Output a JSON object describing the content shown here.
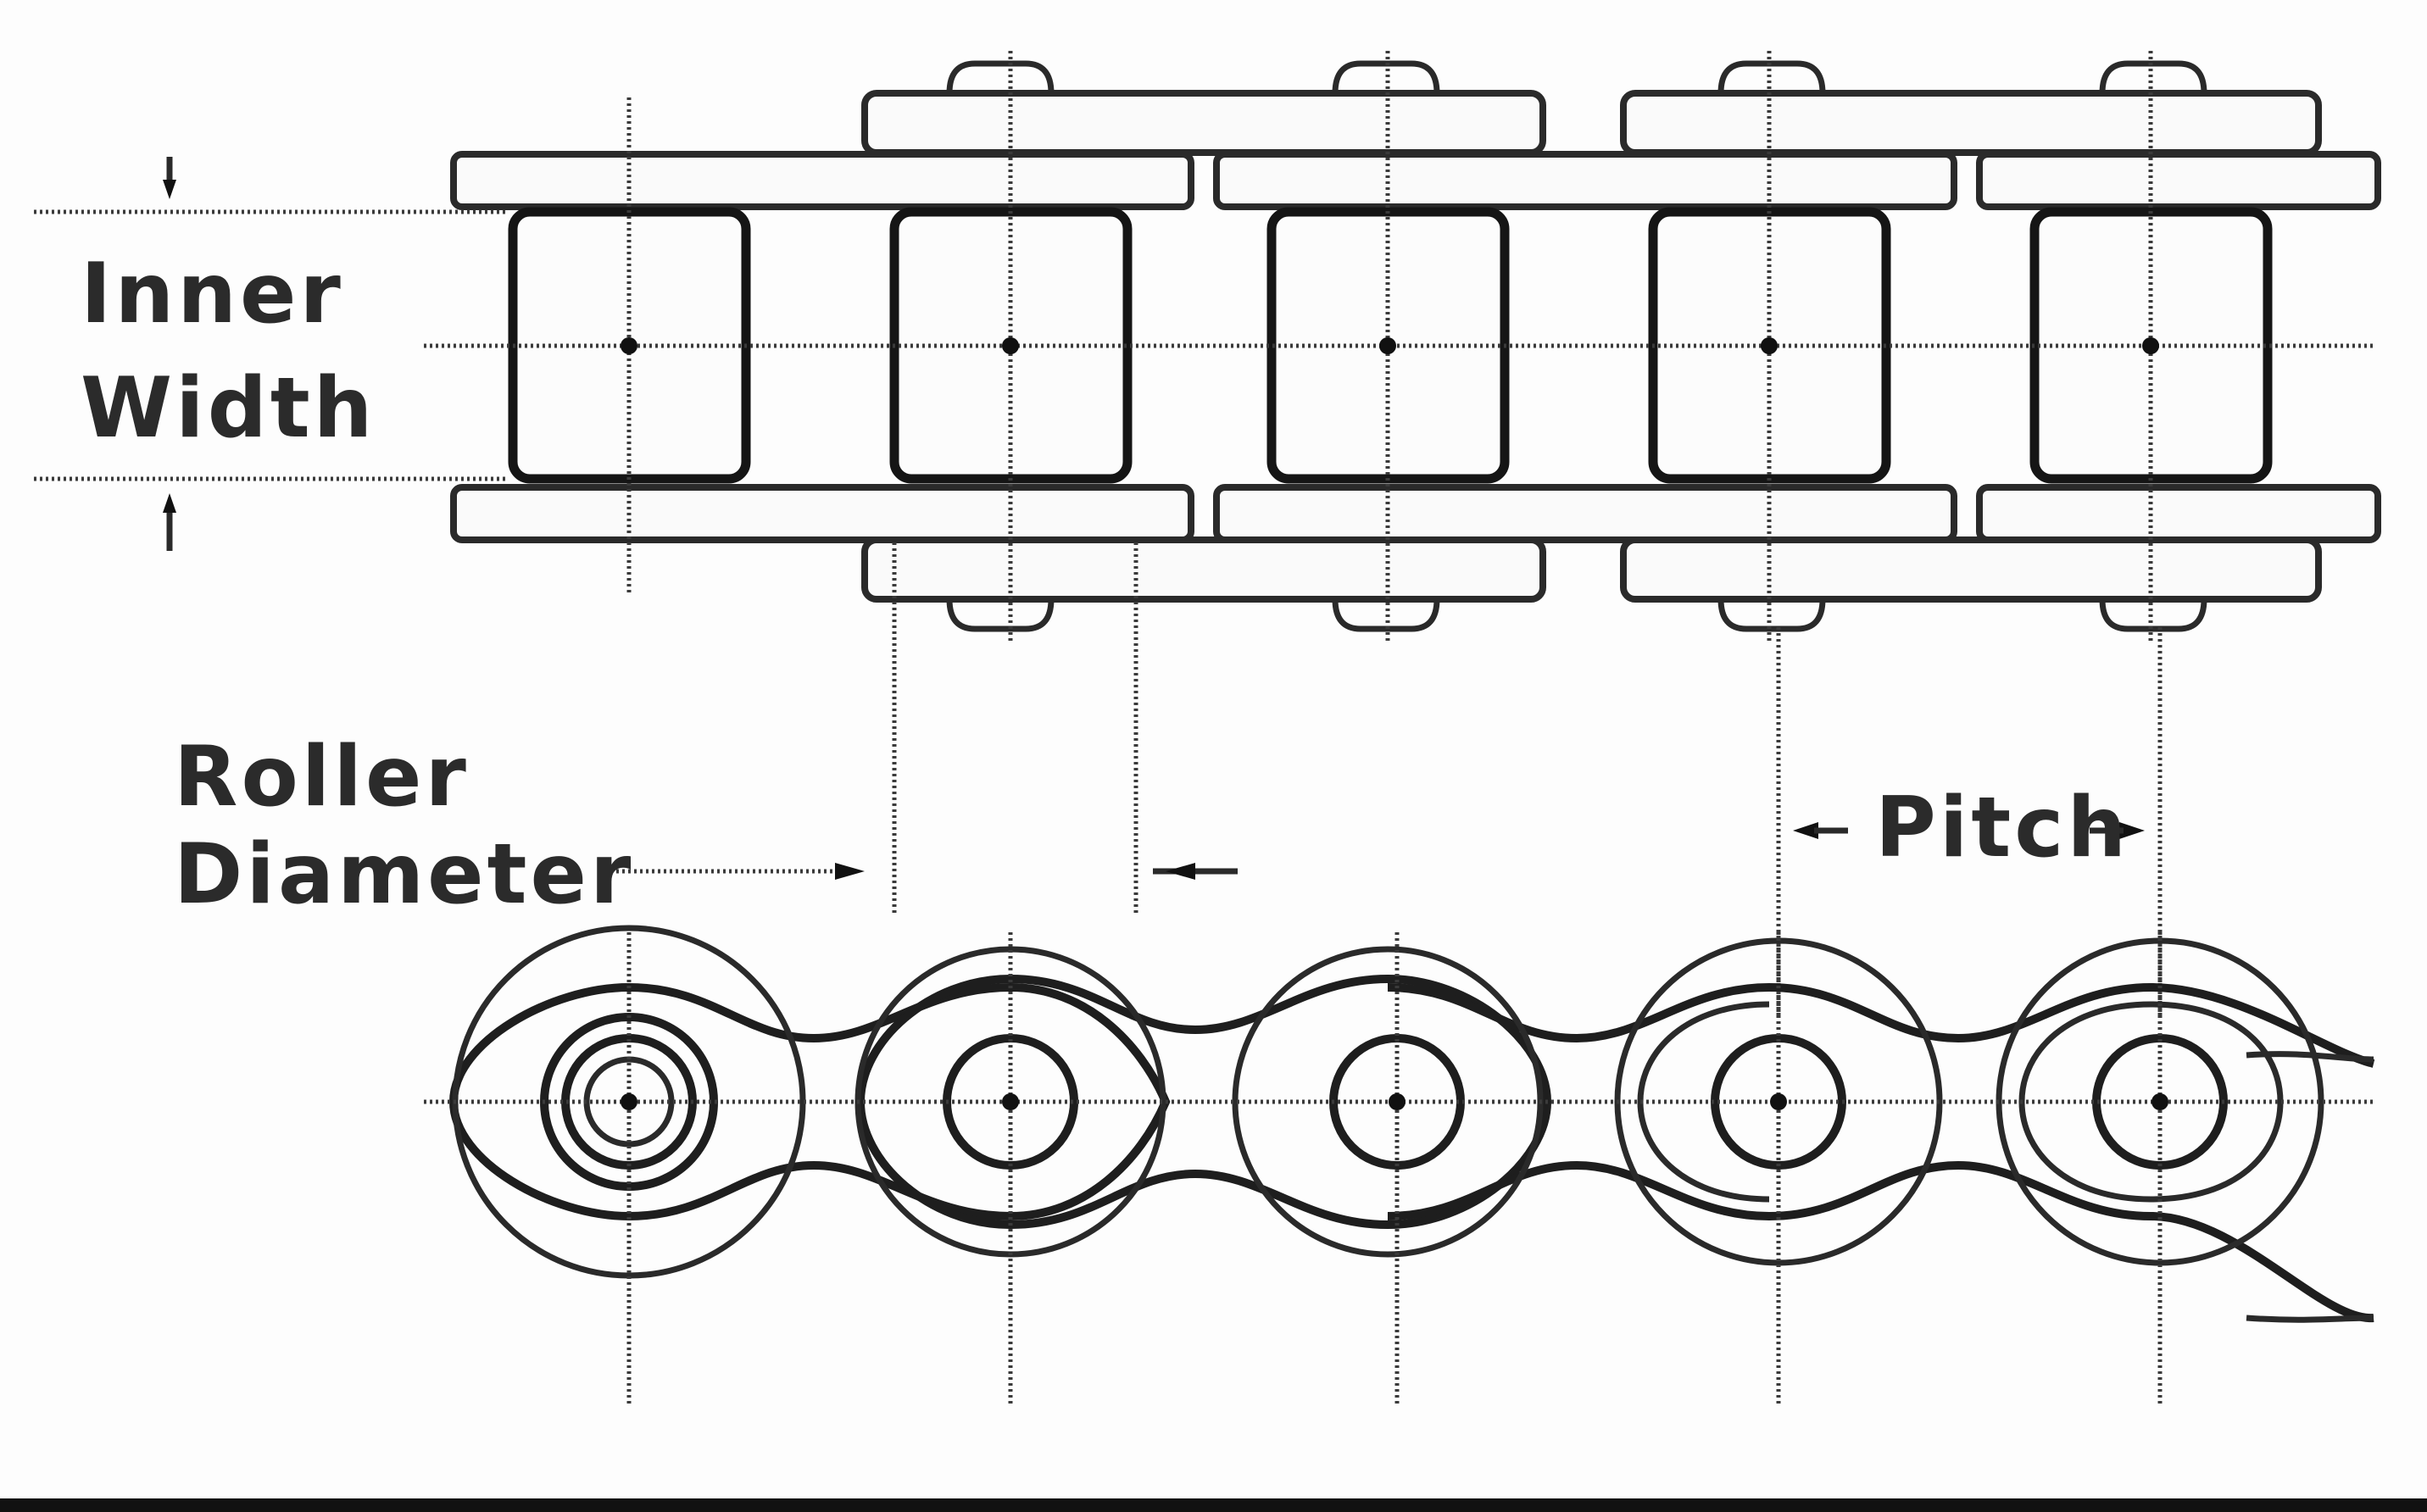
{
  "labels": {
    "inner_width_line1": "Inner",
    "inner_width_line2": "Width",
    "roller_diameter_line1": "Roller",
    "roller_diameter_line2": "Diameter",
    "pitch": "Pitch"
  },
  "colors": {
    "ink": "#1e1e1e",
    "paper": "#fdfdfd"
  }
}
